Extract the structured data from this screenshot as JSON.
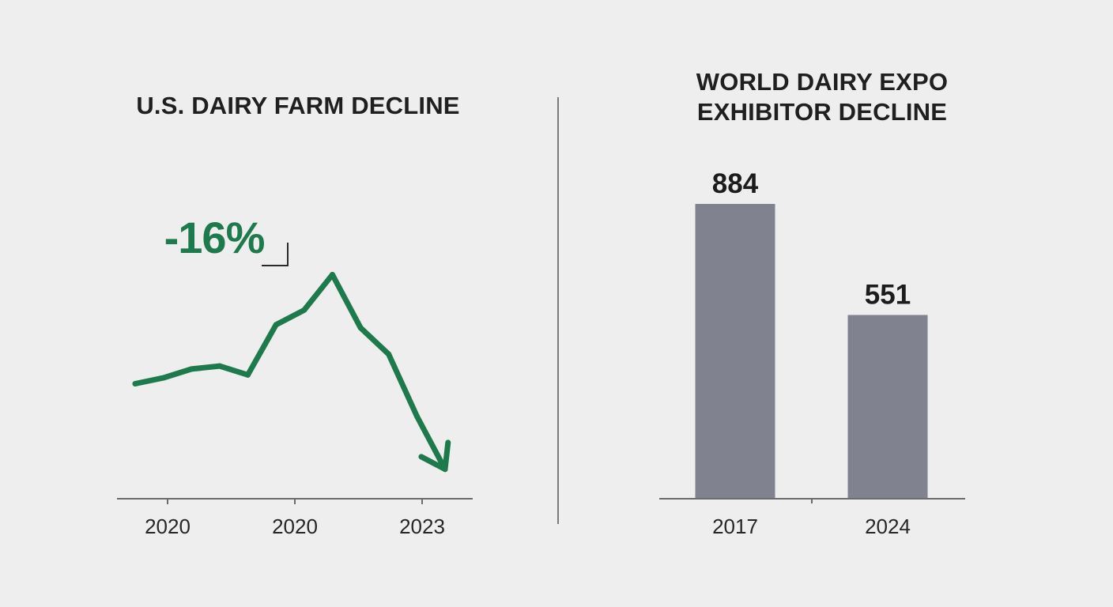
{
  "colors": {
    "background": "#efeeef",
    "line": "#1d7a4c",
    "bar": "#80838f",
    "axis": "#6b6b6b",
    "divider": "#7a7a7a",
    "text": "#1f1f1f"
  },
  "chart_data": [
    {
      "type": "line",
      "title": "U.S. DAIRY FARM DECLINE",
      "xlabel": "",
      "ylabel": "",
      "tick_labels": [
        "2020",
        "2020",
        "2023"
      ],
      "annotation": "-16%",
      "trend_arrow": "down",
      "grid": false,
      "y_axis_shown": false,
      "x": [
        0,
        1,
        2,
        3,
        4,
        5,
        6,
        7,
        8,
        9,
        10,
        11
      ],
      "values": [
        0.39,
        0.41,
        0.44,
        0.45,
        0.42,
        0.59,
        0.64,
        0.76,
        0.58,
        0.49,
        0.28,
        0.1
      ]
    },
    {
      "type": "bar",
      "title_lines": [
        "WORLD DAIRY EXPO",
        "EXHIBITOR DECLINE"
      ],
      "categories": [
        "2017",
        "2024"
      ],
      "values": [
        884,
        551
      ],
      "data_labels": [
        "884",
        "551"
      ],
      "ylim": [
        0,
        884
      ],
      "grid": false,
      "y_axis_shown": false
    }
  ]
}
